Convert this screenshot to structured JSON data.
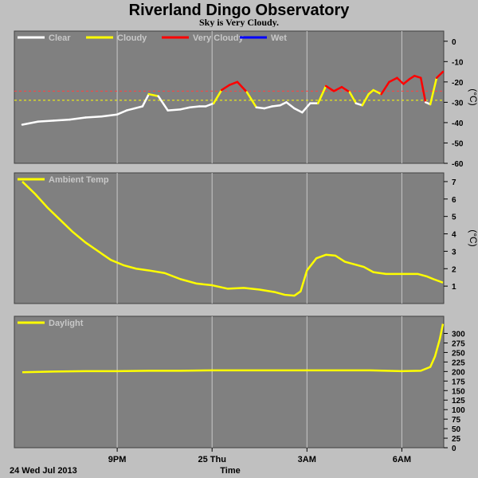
{
  "title": "Riverland Dingo Observatory",
  "subtitle": "Sky is Very Cloudy.",
  "date_label": "24 Wed Jul 2013",
  "x_axis_label": "Time",
  "x_ticks": [
    "9PM",
    "25 Thu",
    "3AM",
    "6AM"
  ],
  "colors": {
    "panel_bg": "#808080",
    "grid": "#c8c8c8",
    "clear": "#ffffff",
    "cloudy": "#ffff00",
    "very_cloudy": "#ff0000",
    "wet": "#0000ff",
    "threshold_very_cloudy": "#ff4040",
    "threshold_cloudy": "#ffff00"
  },
  "chart_data": [
    {
      "type": "line",
      "name": "sky",
      "legend": [
        {
          "label": "Clear",
          "color": "#ffffff"
        },
        {
          "label": "Cloudy",
          "color": "#ffff00"
        },
        {
          "label": "Very Cloudy",
          "color": "#ff0000"
        },
        {
          "label": "Wet",
          "color": "#0000ff"
        }
      ],
      "y_unit": "(°C)",
      "ylim": [
        -60,
        5
      ],
      "y_ticks": [
        0,
        -10,
        -20,
        -30,
        -40,
        -50,
        -60
      ],
      "thresholds": [
        {
          "value": -24.5,
          "color": "#ff4040"
        },
        {
          "value": -29,
          "color": "#ffff00"
        }
      ],
      "x_hours": [
        0,
        0.5,
        1,
        1.5,
        2,
        2.5,
        3,
        3.3,
        3.55,
        3.8,
        4,
        4.3,
        4.6,
        5,
        5.3,
        5.6,
        5.8,
        6.05,
        6.3,
        6.55,
        6.8,
        7.1,
        7.4,
        7.65,
        7.9,
        8.15,
        8.35,
        8.6,
        8.85,
        9.1,
        9.35,
        9.6,
        9.85,
        10.1,
        10.35,
        10.55,
        10.75,
        10.95,
        11.1,
        11.35,
        11.6,
        11.85,
        12.05,
        12.25,
        12.4,
        12.6,
        12.75,
        12.9,
        13.1,
        13.3
      ],
      "y_values": [
        -41,
        -39.5,
        -39,
        -38.5,
        -37.5,
        -37,
        -36,
        -34,
        -33,
        -32,
        -26,
        -27,
        -34,
        -33.5,
        -32.5,
        -32,
        -32,
        -30.5,
        -24,
        -21.5,
        -20,
        -25,
        -32.5,
        -33,
        -32,
        -31.5,
        -30,
        -33,
        -35,
        -30.5,
        -30.5,
        -22,
        -24.5,
        -22.5,
        -25,
        -30.5,
        -31.5,
        -26,
        -24,
        -26,
        -20,
        -18,
        -21,
        -18.5,
        -17,
        -18,
        -30,
        -31,
        -18,
        -15
      ]
    },
    {
      "type": "line",
      "name": "ambient-temp",
      "legend": [
        {
          "label": "Ambient Temp",
          "color": "#ffff00"
        }
      ],
      "y_unit": "(°C)",
      "ylim": [
        0,
        7.5
      ],
      "y_ticks": [
        1,
        2,
        3,
        4,
        5,
        6,
        7
      ],
      "x_hours": [
        0,
        0.4,
        0.8,
        1.2,
        1.6,
        2,
        2.4,
        2.8,
        3.2,
        3.6,
        4,
        4.5,
        5,
        5.5,
        6,
        6.5,
        7,
        7.5,
        8,
        8.3,
        8.6,
        8.8,
        9.0,
        9.3,
        9.6,
        9.9,
        10.2,
        10.5,
        10.8,
        11.1,
        11.5,
        12,
        12.5,
        12.8,
        13,
        13.3
      ],
      "y_values": [
        7,
        6.3,
        5.5,
        4.8,
        4.1,
        3.5,
        3,
        2.5,
        2.2,
        2,
        1.9,
        1.75,
        1.4,
        1.15,
        1.05,
        0.85,
        0.9,
        0.8,
        0.65,
        0.5,
        0.45,
        0.7,
        1.9,
        2.6,
        2.8,
        2.75,
        2.4,
        2.25,
        2.1,
        1.8,
        1.7,
        1.7,
        1.7,
        1.55,
        1.4,
        1.2
      ]
    },
    {
      "type": "line",
      "name": "daylight",
      "legend": [
        {
          "label": "Daylight",
          "color": "#ffff00"
        }
      ],
      "ylim": [
        0,
        345
      ],
      "y_ticks": [
        0,
        25,
        50,
        75,
        100,
        125,
        150,
        175,
        200,
        225,
        250,
        275,
        300
      ],
      "x_hours": [
        0,
        1,
        2,
        3,
        4,
        5,
        6,
        7,
        8,
        9,
        10,
        11,
        12,
        12.6,
        12.9,
        13.05,
        13.2,
        13.3
      ],
      "y_values": [
        198,
        200,
        201,
        201,
        202,
        202,
        203,
        203,
        203,
        203,
        203,
        203,
        201,
        202,
        212,
        240,
        285,
        325
      ]
    }
  ]
}
